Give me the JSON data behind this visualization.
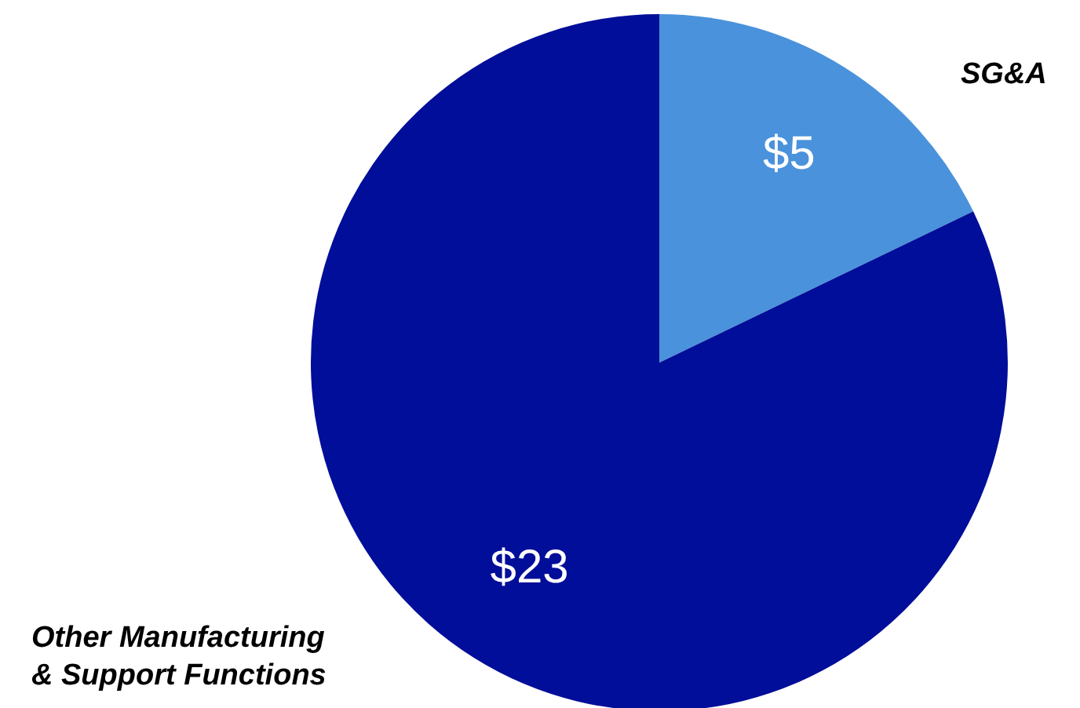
{
  "chart_data": {
    "type": "pie",
    "categories": [
      "SG&A",
      "Other Manufacturing\n& Support Functions"
    ],
    "values": [
      5,
      23
    ],
    "colors": [
      "#4a92db",
      "#000e99"
    ],
    "value_labels": [
      "$5",
      "$23"
    ],
    "legend": false
  }
}
